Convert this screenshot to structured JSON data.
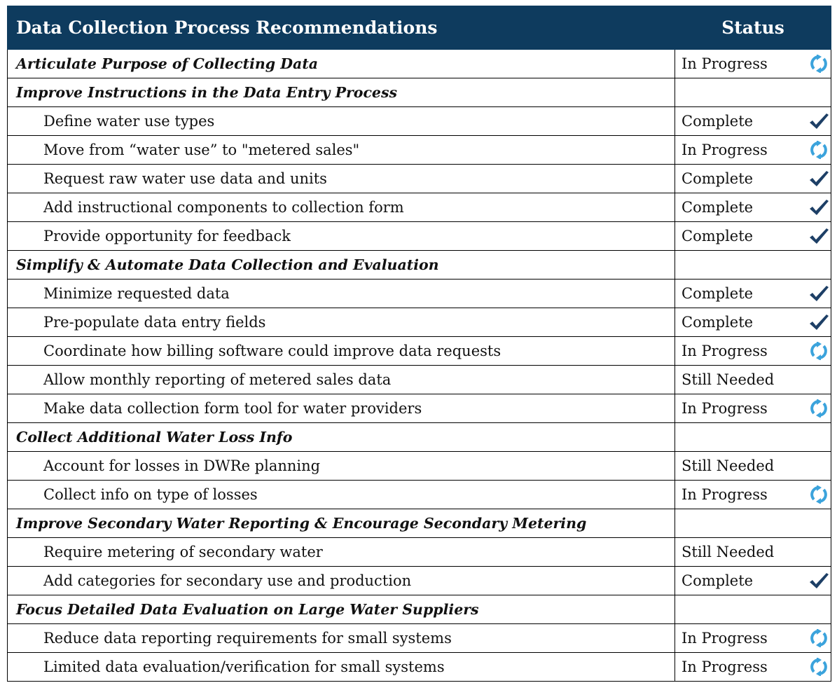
{
  "table": {
    "header": [
      "Data Collection Process Recommendations",
      "Status"
    ],
    "sections": [
      {
        "title": "Articulate Purpose of Collecting Data",
        "status": "In Progress",
        "icon": "refresh",
        "items": []
      },
      {
        "title": "Improve Instructions in the Data Entry Process",
        "items": [
          {
            "label": "Define water use types",
            "status": "Complete",
            "icon": "check"
          },
          {
            "label": "Move from “water use” to \"metered sales\"",
            "status": "In Progress",
            "icon": "refresh"
          },
          {
            "label": "Request raw water use data and units",
            "status": "Complete",
            "icon": "check"
          },
          {
            "label": "Add instructional components to collection form",
            "status": "Complete",
            "icon": "check"
          },
          {
            "label": "Provide opportunity for feedback",
            "status": "Complete",
            "icon": "check"
          }
        ]
      },
      {
        "title": "Simplify & Automate Data Collection and Evaluation",
        "items": [
          {
            "label": "Minimize requested data",
            "status": "Complete",
            "icon": "check"
          },
          {
            "label": "Pre-populate data entry fields",
            "status": "Complete",
            "icon": "check"
          },
          {
            "label": "Coordinate how billing software could improve data requests",
            "status": "In Progress",
            "icon": "refresh"
          },
          {
            "label": "Allow monthly reporting of metered sales data",
            "status": "Still Needed"
          },
          {
            "label": "Make data collection form tool for water providers",
            "status": "In Progress",
            "icon": "refresh"
          }
        ]
      },
      {
        "title": "Collect Additional Water Loss Info",
        "items": [
          {
            "label": "Account for losses in DWRe planning",
            "status": "Still Needed"
          },
          {
            "label": "Collect info on type of losses",
            "status": "In Progress",
            "icon": "refresh"
          }
        ]
      },
      {
        "title": "Improve Secondary Water Reporting & Encourage Secondary Metering",
        "items": [
          {
            "label": "Require metering of secondary water",
            "status": "Still Needed"
          },
          {
            "label": "Add categories for secondary use and production",
            "status": "Complete",
            "icon": "check"
          }
        ]
      },
      {
        "title": "Focus Detailed Data Evaluation on Large Water Suppliers",
        "items": [
          {
            "label": "Reduce data reporting requirements for small systems",
            "status": "In Progress",
            "icon": "refresh"
          },
          {
            "label": "Limited data evaluation/verification for small systems",
            "status": "In Progress",
            "icon": "refresh"
          }
        ]
      }
    ]
  }
}
